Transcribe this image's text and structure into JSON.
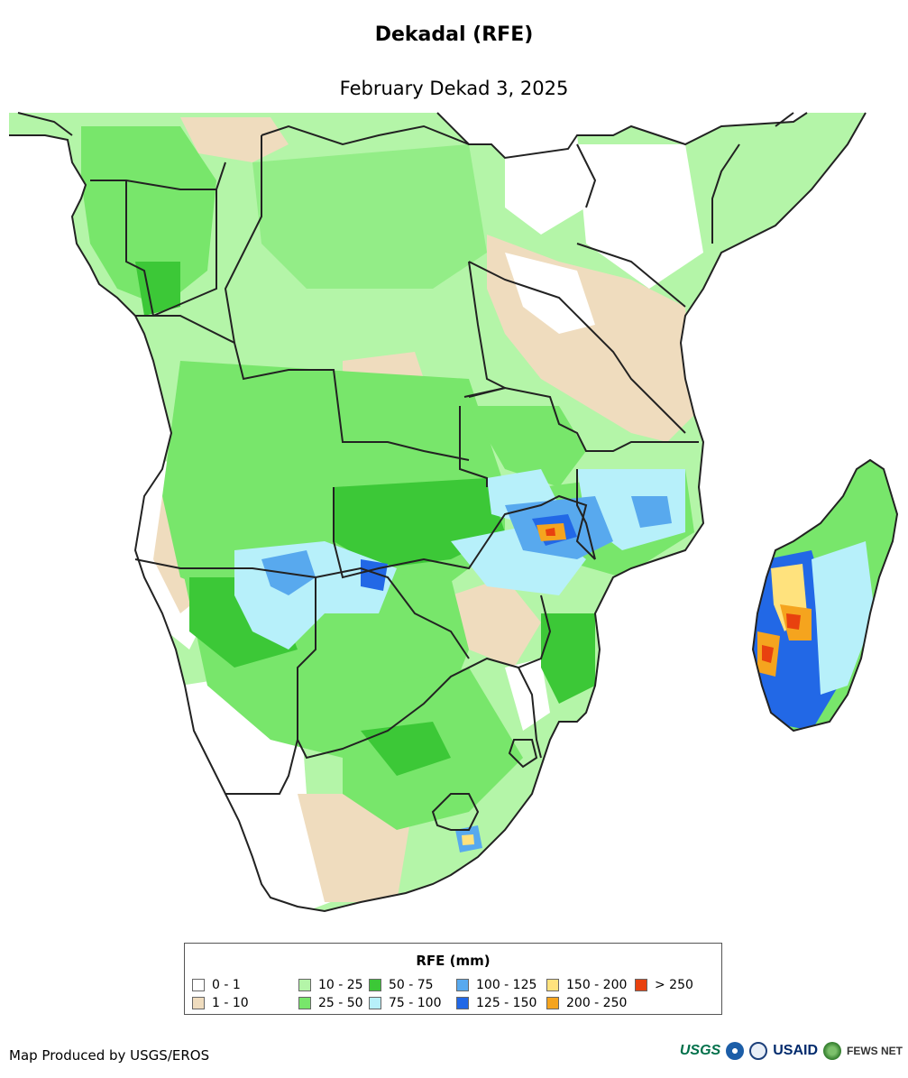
{
  "title": "Dekadal (RFE)",
  "subtitle": "February Dekad 3, 2025",
  "legend": {
    "title": "RFE (mm)",
    "items": [
      {
        "label": "0 - 1",
        "color": "#ffffff"
      },
      {
        "label": "1 - 10",
        "color": "#efdcbe"
      },
      {
        "label": "10 - 25",
        "color": "#b4f5a8"
      },
      {
        "label": "25 - 50",
        "color": "#78e66b"
      },
      {
        "label": "50 - 75",
        "color": "#3cc837"
      },
      {
        "label": "75 - 100",
        "color": "#b7f0fa"
      },
      {
        "label": "100 - 125",
        "color": "#58a9ee"
      },
      {
        "label": "125 - 150",
        "color": "#2268e6"
      },
      {
        "label": "150 - 200",
        "color": "#ffe27d"
      },
      {
        "label": "200 - 250",
        "color": "#f5a41e"
      },
      {
        "label": "> 250",
        "color": "#e8410f"
      }
    ]
  },
  "credit": "Map Produced by USGS/EROS",
  "logos": {
    "usgs": "USGS",
    "usaid": "USAID",
    "fews": "FEWS NET"
  }
}
